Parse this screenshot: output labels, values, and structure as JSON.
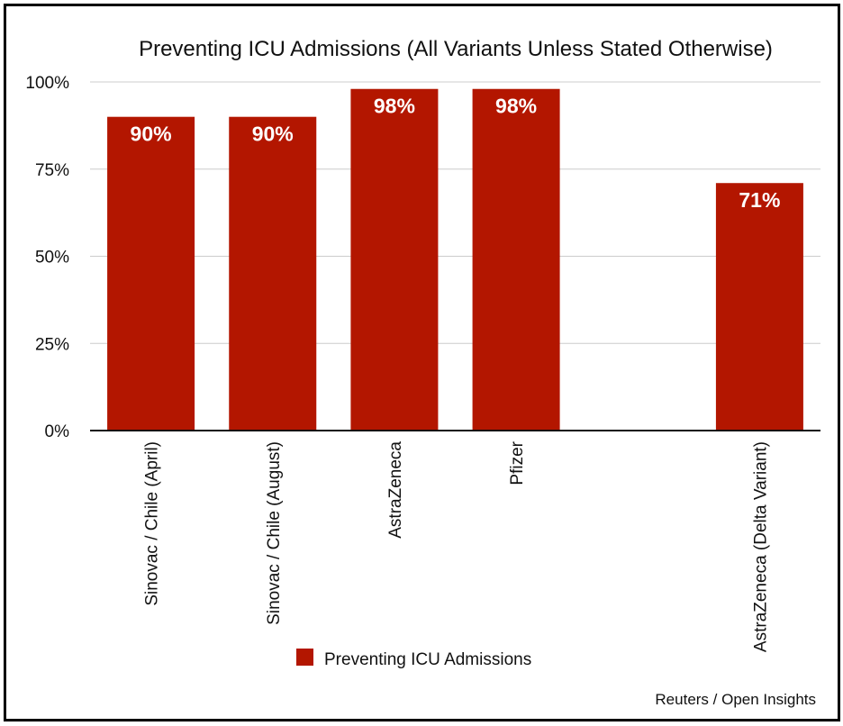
{
  "chart_data": {
    "type": "bar",
    "title": "Preventing ICU Admissions (All Variants Unless Stated Otherwise)",
    "categories": [
      "Sinovac / Chile (April)",
      "Sinovac / Chile (August)",
      "AstraZeneca",
      "Pfizer",
      "",
      "AstraZeneca (Delta Variant)"
    ],
    "series": [
      {
        "name": "Preventing ICU Admissions",
        "values": [
          90,
          90,
          98,
          98,
          null,
          71
        ],
        "labels": [
          "90%",
          "90%",
          "98%",
          "98%",
          "",
          "71%"
        ],
        "color": "#b31600"
      }
    ],
    "yticks": [
      "0%",
      "25%",
      "50%",
      "75%",
      "100%"
    ],
    "ytick_values": [
      0,
      25,
      50,
      75,
      100
    ],
    "ylim": [
      0,
      100
    ],
    "grid": true,
    "legend_position": "bottom",
    "source": "Reuters / Open Insights"
  }
}
